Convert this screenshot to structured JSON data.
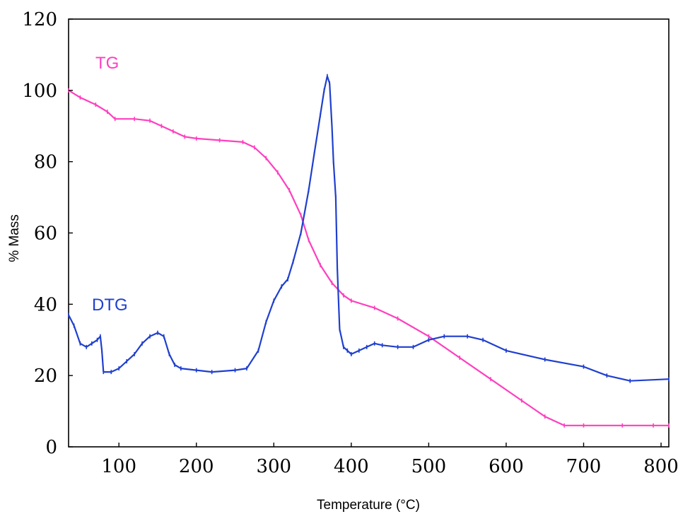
{
  "chart_data": {
    "type": "line",
    "title": "",
    "xlabel": "Temperature (°C)",
    "ylabel": "% Mass",
    "xlim": [
      35,
      810
    ],
    "ylim": [
      0,
      120
    ],
    "xticks": [
      "100",
      "200",
      "300",
      "400",
      "500",
      "600",
      "700",
      "800"
    ],
    "yticks": [
      "0",
      "20",
      "40",
      "60",
      "80",
      "100",
      "120"
    ],
    "grid": false,
    "legend": "none",
    "series": [
      {
        "name": "TG",
        "color": "#ff3fbf",
        "x": [
          35,
          50,
          70,
          85,
          95,
          120,
          140,
          155,
          170,
          185,
          200,
          230,
          260,
          275,
          290,
          305,
          320,
          335,
          345,
          360,
          375,
          390,
          400,
          430,
          460,
          500,
          540,
          580,
          620,
          650,
          675,
          700,
          750,
          790,
          810
        ],
        "y": [
          100,
          98,
          96,
          94,
          92,
          92,
          91.5,
          90,
          88.5,
          87,
          86.5,
          86,
          85.5,
          84,
          81,
          77,
          72,
          65,
          58,
          51,
          46,
          42.5,
          41,
          39,
          36,
          31,
          25,
          19,
          13,
          8.5,
          6,
          6,
          6,
          6,
          6
        ]
      },
      {
        "name": "DTG",
        "color": "#1f3fcf",
        "x": [
          35,
          42,
          50,
          58,
          65,
          72,
          76,
          78,
          80,
          90,
          100,
          110,
          120,
          130,
          140,
          150,
          158,
          165,
          172,
          180,
          200,
          220,
          250,
          265,
          280,
          290,
          300,
          310,
          318,
          325,
          335,
          345,
          352,
          360,
          365,
          369,
          372,
          375,
          377,
          380,
          382,
          385,
          390,
          395,
          400,
          410,
          420,
          430,
          440,
          460,
          480,
          500,
          520,
          550,
          570,
          600,
          650,
          700,
          730,
          760,
          810
        ],
        "y": [
          37,
          34,
          29,
          28,
          29,
          30,
          31,
          27,
          21,
          21,
          22,
          24,
          26,
          29,
          31,
          32,
          31,
          26,
          23,
          22,
          21.5,
          21,
          21.5,
          22,
          27,
          35,
          41,
          45,
          47,
          52,
          60,
          72,
          82,
          93,
          100,
          104,
          102,
          90,
          80,
          70,
          50,
          33,
          28,
          27,
          26,
          27,
          28,
          29,
          28.5,
          28,
          28,
          30,
          31,
          31,
          30,
          27,
          24.5,
          22.5,
          20,
          18.5,
          19
        ]
      }
    ]
  }
}
